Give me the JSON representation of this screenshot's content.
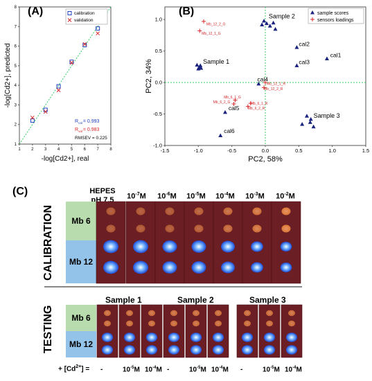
{
  "panels": {
    "A": "(A)",
    "B": "(B)",
    "C": "(C)"
  },
  "chart_data": [
    {
      "type": "scatter",
      "panel": "A",
      "xlabel": "-log[Cd2+], real",
      "ylabel": "-log[Cd2+], predicted",
      "xlim": [
        1,
        8
      ],
      "ylim": [
        1,
        8
      ],
      "xticks": [
        "1",
        "2",
        "3",
        "4",
        "5",
        "6",
        "7",
        "8"
      ],
      "yticks": [
        "1",
        "2",
        "3",
        "4",
        "5",
        "6",
        "7",
        "8"
      ],
      "series": [
        {
          "name": "calibration",
          "marker": "square",
          "color": "#1f3fbf",
          "points": [
            [
              2,
              2.2
            ],
            [
              3,
              2.75
            ],
            [
              4,
              3.95
            ],
            [
              5,
              5.2
            ],
            [
              6,
              6.05
            ],
            [
              7,
              6.9
            ]
          ]
        },
        {
          "name": "validation",
          "marker": "x",
          "color": "#d62728",
          "points": [
            [
              2,
              2.35
            ],
            [
              3,
              2.65
            ],
            [
              4,
              3.75
            ],
            [
              5,
              5.15
            ],
            [
              6,
              6.1
            ],
            [
              7,
              6.65
            ]
          ]
        }
      ],
      "annotations": {
        "r2cal_prefix": "R",
        "r2cal_sub": "cal",
        "r2cal_value": "= 0.993",
        "r2val_prefix": "R",
        "r2val_sub": "val",
        "r2val_value": "= 0.983",
        "rmsev": "RMSEV = 0.225"
      }
    },
    {
      "type": "scatter",
      "panel": "B",
      "xlabel": "PC2, 58%",
      "ylabel": "PC2, 34%",
      "xlim": [
        -1.5,
        1.5
      ],
      "ylim": [
        -1.0,
        1.2
      ],
      "xticks": [
        "-1.5",
        "-1.0",
        "-0.5",
        "0.0",
        "0.5",
        "1.0",
        "1.5"
      ],
      "yticks": [
        "-1.0",
        "-0.5",
        "0.0",
        "0.5",
        "1.0"
      ],
      "series": [
        {
          "name": "sample scores",
          "marker": "triangle",
          "color": "#1a237e",
          "points": [
            [
              -1.02,
              0.28
            ],
            [
              -0.99,
              0.24
            ],
            [
              -0.97,
              0.27
            ],
            [
              -1.0,
              0.22
            ],
            [
              -0.96,
              0.23
            ],
            [
              -0.02,
              0.98
            ],
            [
              0.02,
              0.94
            ],
            [
              0.07,
              0.9
            ],
            [
              0.12,
              0.95
            ],
            [
              0.15,
              0.85
            ],
            [
              -0.05,
              0.92
            ],
            [
              0.47,
              0.56
            ],
            [
              0.47,
              0.27
            ],
            [
              0.92,
              0.38
            ],
            [
              -0.1,
              -0.02
            ],
            [
              0.62,
              -0.53
            ],
            [
              0.68,
              -0.58
            ],
            [
              0.55,
              -0.66
            ],
            [
              0.72,
              -0.7
            ],
            [
              0.67,
              -0.63
            ],
            [
              -0.6,
              -0.47
            ],
            [
              -0.67,
              -0.84
            ]
          ]
        },
        {
          "name": "sensors loadings",
          "marker": "plus",
          "color": "#d62728",
          "points": [
            [
              -0.92,
              0.97
            ],
            [
              -0.98,
              0.82
            ],
            [
              0.0,
              0.0
            ],
            [
              -0.02,
              -0.08
            ],
            [
              -0.45,
              -0.28
            ],
            [
              -0.47,
              -0.34
            ],
            [
              -0.22,
              -0.33
            ],
            [
              -0.26,
              -0.38
            ]
          ]
        }
      ],
      "point_labels": {
        "sample2": "Sample 2",
        "sample1": "Sample 1",
        "cal2": "cal2",
        "cal1": "cal1",
        "cal3": "cal3",
        "cal4": "cal4",
        "cal5": "cal5",
        "cal6": "cal6",
        "sample3": "Sample 3"
      },
      "loading_labels": {
        "mb12_2_g": "Mb_12_2_G",
        "mb12_1_g": "Mb_12_1_G",
        "mb12_1_r": "Mb_12_1_R",
        "mb12_2_r": "Mb_12_2_R",
        "mb6_1_g": "Mb_6_1_G",
        "mb6_2_g": "Mb_6_2_G",
        "mb6_1_r": "Mb_6_1_R",
        "mb6_2_r": "Mb_6_2_R"
      }
    }
  ],
  "panel_c": {
    "calibration_label": "CALIBRATION",
    "testing_label": "TESTING",
    "row_mb6": "Mb 6",
    "row_mb12": "Mb 12",
    "columns": [
      {
        "line1": "HEPES",
        "line2": "pH 7.5"
      },
      {
        "base": "10",
        "exp": "-7",
        "unit": "M"
      },
      {
        "base": "10",
        "exp": "-6",
        "unit": "M"
      },
      {
        "base": "10",
        "exp": "-5",
        "unit": "M"
      },
      {
        "base": "10",
        "exp": "-4",
        "unit": "M"
      },
      {
        "base": "10",
        "exp": "-3",
        "unit": "M"
      },
      {
        "base": "10",
        "exp": "-2",
        "unit": "M"
      }
    ],
    "samples": [
      "Sample 1",
      "Sample 2",
      "Sample 3"
    ],
    "cd_label_prefix": "+ [Cd",
    "cd_label_sup": "2+",
    "cd_label_suffix": "] =",
    "testing_conc": [
      {
        "text": "-"
      },
      {
        "base": "10",
        "exp": "-5",
        "unit": "M"
      },
      {
        "base": "10",
        "exp": "-4",
        "unit": "M"
      }
    ],
    "colors": {
      "mb6_bg": "#b8dcae",
      "mb12_bg": "#93c3e8",
      "strip_bg": "#6b1f24",
      "spot_orange": "#e8813a",
      "spot_blue": "#7ab8ff"
    }
  }
}
